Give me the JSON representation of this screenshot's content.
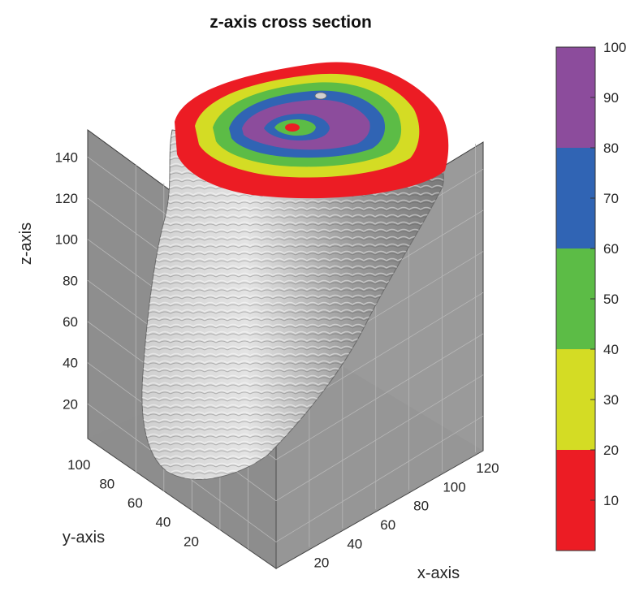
{
  "chart_data": {
    "type": "surface-3d",
    "title": "z-axis cross section",
    "xlabel": "x-axis",
    "ylabel": "y-axis",
    "zlabel": "z-axis",
    "x_ticks": [
      20,
      40,
      60,
      80,
      100,
      120
    ],
    "y_ticks": [
      20,
      40,
      60,
      80,
      100
    ],
    "z_ticks": [
      20,
      40,
      60,
      80,
      100,
      120,
      140
    ],
    "grid": true,
    "colorbar": {
      "range": [
        0,
        100
      ],
      "ticks": [
        10,
        20,
        30,
        40,
        50,
        60,
        70,
        80,
        90,
        100
      ],
      "bands": [
        {
          "from": 0,
          "to": 20,
          "color": "#ec1c24"
        },
        {
          "from": 20,
          "to": 40,
          "color": "#d4dc24"
        },
        {
          "from": 40,
          "to": 60,
          "color": "#5cbc46"
        },
        {
          "from": 60,
          "to": 80,
          "color": "#3064b4"
        },
        {
          "from": 80,
          "to": 100,
          "color": "#8c4c9c"
        }
      ]
    },
    "surface_color": "#a8a8a8",
    "wall_color": "#8c8c8c"
  }
}
